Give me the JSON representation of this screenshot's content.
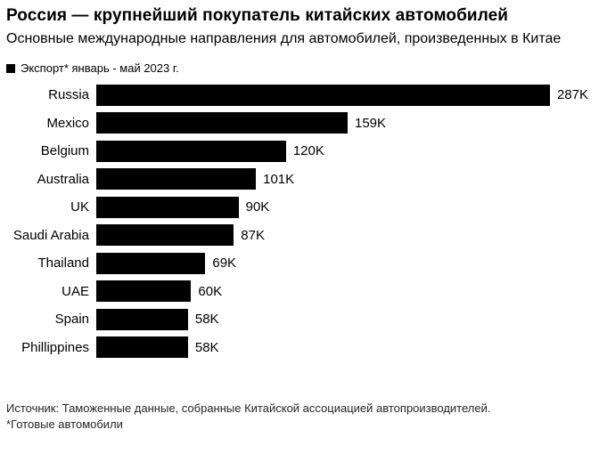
{
  "header": {
    "title": "Россия — крупнейший покупатель китайских автомобилей",
    "subtitle": "Основные международные направления для автомобилей, произведенных в Китае"
  },
  "legend": {
    "label": "Экспорт* январь - май 2023 г.",
    "swatch_color": "#000000"
  },
  "chart_data": {
    "type": "bar",
    "orientation": "horizontal",
    "title": "Россия — крупнейший покупатель китайских автомобилей",
    "subtitle": "Основные международные направления для автомобилей, произведенных в Китае",
    "legend_entries": [
      "Экспорт* январь - май 2023 г."
    ],
    "legend_position": "top-left",
    "categories": [
      "Russia",
      "Mexico",
      "Belgium",
      "Australia",
      "UK",
      "Saudi Arabia",
      "Thailand",
      "UAE",
      "Spain",
      "Phillippines"
    ],
    "values": [
      287,
      159,
      120,
      101,
      90,
      87,
      69,
      60,
      58,
      58
    ],
    "value_labels": [
      "287K",
      "159K",
      "120K",
      "101K",
      "90K",
      "87K",
      "69K",
      "60K",
      "58K",
      "58K"
    ],
    "unit": "K vehicles",
    "xlim": [
      0,
      287
    ],
    "grid": false,
    "bar_color": "#000000",
    "background_color": "#ffffff"
  },
  "footer": {
    "source": "Источник: Таможенные данные, собранные Китайской ассоциацией автопроизводителей.",
    "footnote": "*Готовые автомобили"
  }
}
